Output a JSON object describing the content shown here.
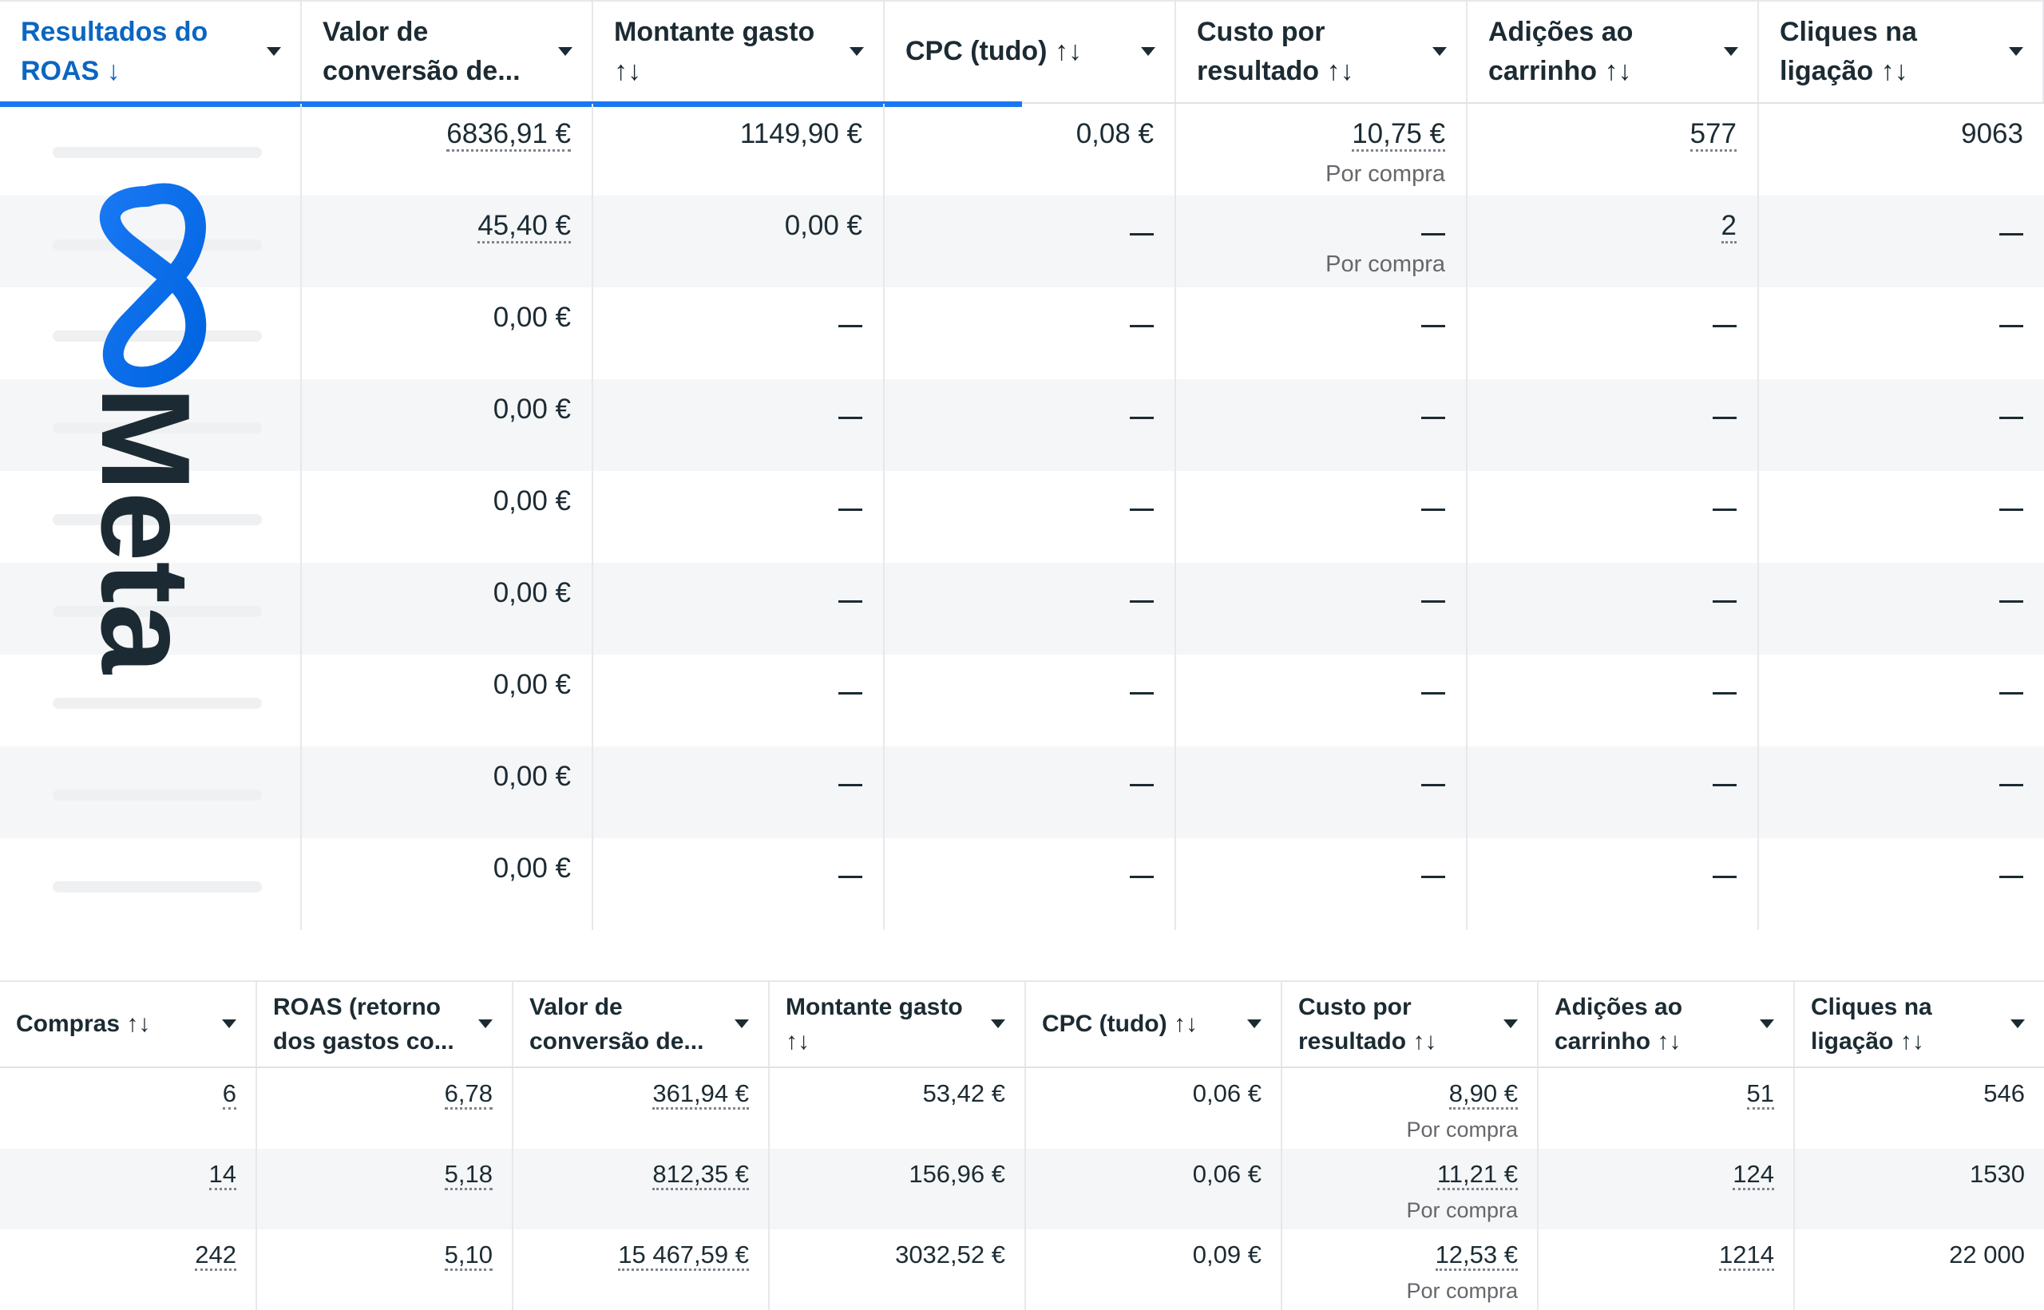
{
  "top_table": {
    "columns": [
      {
        "label": "Resultados do ROAS ↓",
        "line1": "Resultados do",
        "line2": "ROAS ↓"
      },
      {
        "label": "Valor de conversão de...",
        "line1": "Valor de",
        "line2": "conversão de..."
      },
      {
        "label": "Montante gasto ↑↓",
        "line1": "Montante gasto",
        "line2": "↑↓"
      },
      {
        "label": "CPC (tudo) ↑↓",
        "line1": "CPC (tudo) ↑↓",
        "line2": ""
      },
      {
        "label": "Custo por resultado ↑↓",
        "line1": "Custo por",
        "line2": "resultado ↑↓"
      },
      {
        "label": "Adições ao carrinho ↑↓",
        "line1": "Adições ao",
        "line2": "carrinho ↑↓"
      },
      {
        "label": "Cliques na ligação ↑↓",
        "line1": "Cliques na",
        "line2": "ligação ↑↓"
      }
    ],
    "rows": [
      {
        "conv_value": "6836,91 €",
        "spent": "1149,90 €",
        "cpc": "0,08 €",
        "cost": "10,75 €",
        "cost_sub": "Por compra",
        "cart": "577",
        "clicks": "9063"
      },
      {
        "conv_value": "45,40 €",
        "spent": "0,00 €",
        "cpc": "—",
        "cost": "—",
        "cost_sub": "Por compra",
        "cart": "2",
        "clicks": "—"
      },
      {
        "conv_value": "0,00 €",
        "spent": "—",
        "cpc": "—",
        "cost": "—",
        "cost_sub": "",
        "cart": "—",
        "clicks": "—"
      },
      {
        "conv_value": "0,00 €",
        "spent": "—",
        "cpc": "—",
        "cost": "—",
        "cost_sub": "",
        "cart": "—",
        "clicks": "—"
      },
      {
        "conv_value": "0,00 €",
        "spent": "—",
        "cpc": "—",
        "cost": "—",
        "cost_sub": "",
        "cart": "—",
        "clicks": "—"
      },
      {
        "conv_value": "0,00 €",
        "spent": "—",
        "cpc": "—",
        "cost": "—",
        "cost_sub": "",
        "cart": "—",
        "clicks": "—"
      },
      {
        "conv_value": "0,00 €",
        "spent": "—",
        "cpc": "—",
        "cost": "—",
        "cost_sub": "",
        "cart": "—",
        "clicks": "—"
      },
      {
        "conv_value": "0,00 €",
        "spent": "—",
        "cpc": "—",
        "cost": "—",
        "cost_sub": "",
        "cart": "—",
        "clicks": "—"
      },
      {
        "conv_value": "0,00 €",
        "spent": "—",
        "cpc": "—",
        "cost": "—",
        "cost_sub": "",
        "cart": "—",
        "clicks": "—"
      }
    ]
  },
  "bottom_table": {
    "columns": [
      {
        "line1": "Compras ↑↓",
        "line2": ""
      },
      {
        "line1": "ROAS (retorno",
        "line2": "dos gastos co..."
      },
      {
        "line1": "Valor de",
        "line2": "conversão de..."
      },
      {
        "line1": "Montante gasto",
        "line2": "↑↓"
      },
      {
        "line1": "CPC (tudo) ↑↓",
        "line2": ""
      },
      {
        "line1": "Custo por",
        "line2": "resultado ↑↓"
      },
      {
        "line1": "Adições ao",
        "line2": "carrinho ↑↓"
      },
      {
        "line1": "Cliques na",
        "line2": "ligação ↑↓"
      }
    ],
    "rows": [
      {
        "purchases": "6",
        "roas": "6,78",
        "conv_value": "361,94 €",
        "spent": "53,42 €",
        "cpc": "0,06 €",
        "cost": "8,90 €",
        "cost_sub": "Por compra",
        "cart": "51",
        "clicks": "546"
      },
      {
        "purchases": "14",
        "roas": "5,18",
        "conv_value": "812,35 €",
        "spent": "156,96 €",
        "cpc": "0,06 €",
        "cost": "11,21 €",
        "cost_sub": "Por compra",
        "cart": "124",
        "clicks": "1530"
      },
      {
        "purchases": "242",
        "roas": "5,10",
        "conv_value": "15 467,59 €",
        "spent": "3032,52 €",
        "cpc": "0,09 €",
        "cost": "12,53 €",
        "cost_sub": "Por compra",
        "cart": "1214",
        "clicks": "22 000"
      }
    ]
  },
  "logo": {
    "wordmark": "Meta",
    "colors": {
      "infinity": "#1877f2",
      "infinity_dark": "#0064e0",
      "wordmark": "#1c2b33"
    }
  },
  "colors": {
    "accent": "#0a66c2",
    "underline": "#1877f2",
    "text": "#1c2b33",
    "muted": "#65676b",
    "row_alt": "#f5f6f7",
    "border": "#e6e8eb"
  }
}
